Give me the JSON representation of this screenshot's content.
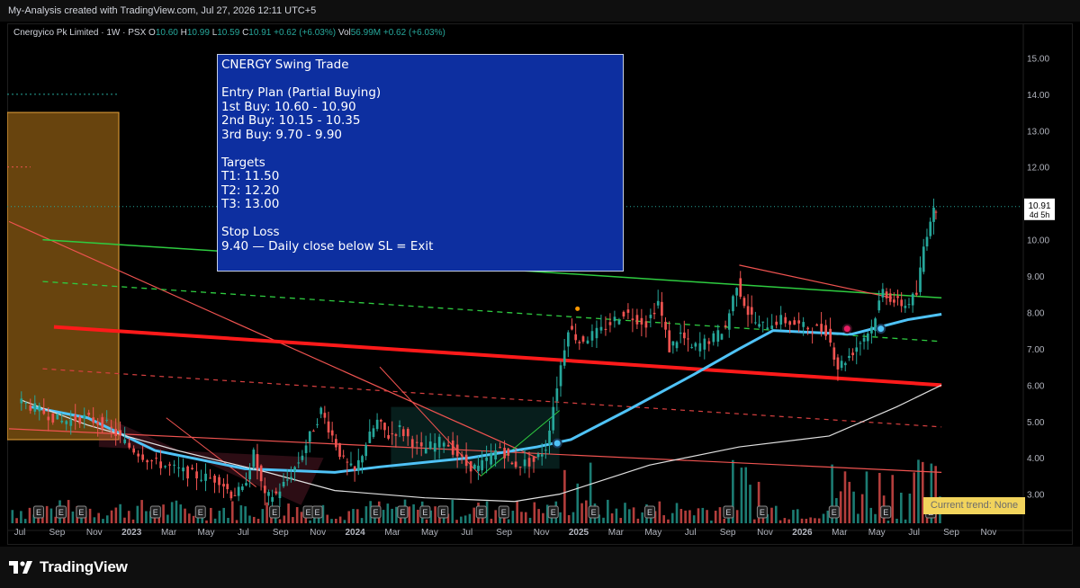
{
  "header": {
    "title": "My-Analysis created with TradingView.com, Jul 27, 2026 12:11 UTC+5"
  },
  "legend": {
    "symbol": "Cnergyico Pk Limited · 1W · PSX",
    "open_label": "O",
    "open": "10.60",
    "high_label": "H",
    "high": "10.99",
    "low_label": "L",
    "low": "10.59",
    "close_label": "C",
    "close": "10.91",
    "change": "+0.62 (+6.03%)",
    "vol_label": "Vol",
    "vol": "56.99M",
    "vol_change": "+0.62 (+6.03%)"
  },
  "price_label": {
    "value": "10.91",
    "countdown": "4d 5h"
  },
  "annotation": {
    "lines": [
      "CNERGY Swing Trade",
      "",
      "Entry Plan (Partial Buying)",
      "1st Buy: 10.60 - 10.90",
      "2nd Buy: 10.15 - 10.35",
      "3rd Buy: 9.70 - 9.90",
      "",
      "Targets",
      "T1: 11.50",
      "T2: 12.20",
      "T3: 13.00",
      "",
      "Stop Loss",
      "9.40 — Daily close below SL = Exit"
    ]
  },
  "trend_box": "Current trend: None",
  "brand": "TradingView",
  "colors": {
    "up": "#26a69a",
    "down": "#ef5350",
    "ema": "#4fc3f7",
    "sma": "#e0e0e0",
    "red_line": "#ff1a1a",
    "green_line": "#2ecc40",
    "box": "#0d2fa0"
  },
  "chart_data": {
    "type": "candlestick",
    "timeframe": "1W",
    "y_axis": {
      "ticks": [
        3.0,
        4.0,
        5.0,
        6.0,
        7.0,
        8.0,
        9.0,
        10.0,
        11.0,
        12.0,
        13.0,
        14.0,
        15.0
      ],
      "range": [
        2.2,
        15.9
      ]
    },
    "x_axis": {
      "ticks": [
        "Jul",
        "Sep",
        "Nov",
        "2023",
        "Mar",
        "May",
        "Jul",
        "Sep",
        "Nov",
        "2024",
        "Mar",
        "May",
        "Jul",
        "Sep",
        "Nov",
        "2025",
        "Mar",
        "May",
        "Jul",
        "Sep",
        "Nov",
        "2026",
        "Mar",
        "May",
        "Jul",
        "Sep",
        "Nov"
      ]
    },
    "last_close": 10.91,
    "price_path": [
      [
        2022.5,
        5.6
      ],
      [
        2022.6,
        5.3
      ],
      [
        2022.7,
        5.0
      ],
      [
        2022.8,
        5.1
      ],
      [
        2022.9,
        4.9
      ],
      [
        2023.0,
        4.3
      ],
      [
        2023.1,
        3.9
      ],
      [
        2023.2,
        3.7
      ],
      [
        2023.3,
        3.5
      ],
      [
        2023.4,
        3.4
      ],
      [
        2023.45,
        3.0
      ],
      [
        2023.5,
        3.1
      ],
      [
        2023.55,
        4.1
      ],
      [
        2023.6,
        2.9
      ],
      [
        2023.65,
        3.0
      ],
      [
        2023.7,
        3.4
      ],
      [
        2023.75,
        3.9
      ],
      [
        2023.8,
        4.6
      ],
      [
        2023.85,
        5.3
      ],
      [
        2023.9,
        4.6
      ],
      [
        2023.95,
        3.9
      ],
      [
        2024.0,
        3.6
      ],
      [
        2024.05,
        4.4
      ],
      [
        2024.1,
        5.0
      ],
      [
        2024.15,
        4.6
      ],
      [
        2024.2,
        4.8
      ],
      [
        2024.3,
        4.2
      ],
      [
        2024.4,
        4.5
      ],
      [
        2024.5,
        3.8
      ],
      [
        2024.55,
        3.7
      ],
      [
        2024.65,
        4.3
      ],
      [
        2024.7,
        3.8
      ],
      [
        2024.8,
        3.9
      ],
      [
        2024.85,
        4.3
      ],
      [
        2024.9,
        6.0
      ],
      [
        2024.95,
        7.6
      ],
      [
        2025.0,
        7.2
      ],
      [
        2025.1,
        7.5
      ],
      [
        2025.2,
        8.0
      ],
      [
        2025.3,
        7.7
      ],
      [
        2025.35,
        8.3
      ],
      [
        2025.4,
        7.0
      ],
      [
        2025.45,
        7.4
      ],
      [
        2025.5,
        7.0
      ],
      [
        2025.6,
        7.3
      ],
      [
        2025.65,
        7.6
      ],
      [
        2025.7,
        8.8
      ],
      [
        2025.75,
        8.0
      ],
      [
        2025.8,
        7.6
      ],
      [
        2025.9,
        7.8
      ],
      [
        2026.0,
        7.6
      ],
      [
        2026.1,
        7.5
      ],
      [
        2026.15,
        6.5
      ],
      [
        2026.2,
        6.8
      ],
      [
        2026.25,
        7.2
      ],
      [
        2026.3,
        7.6
      ],
      [
        2026.35,
        8.6
      ],
      [
        2026.4,
        8.3
      ],
      [
        2026.45,
        8.2
      ],
      [
        2026.5,
        8.5
      ],
      [
        2026.53,
        9.8
      ],
      [
        2026.56,
        10.6
      ],
      [
        2026.58,
        10.91
      ]
    ]
  }
}
